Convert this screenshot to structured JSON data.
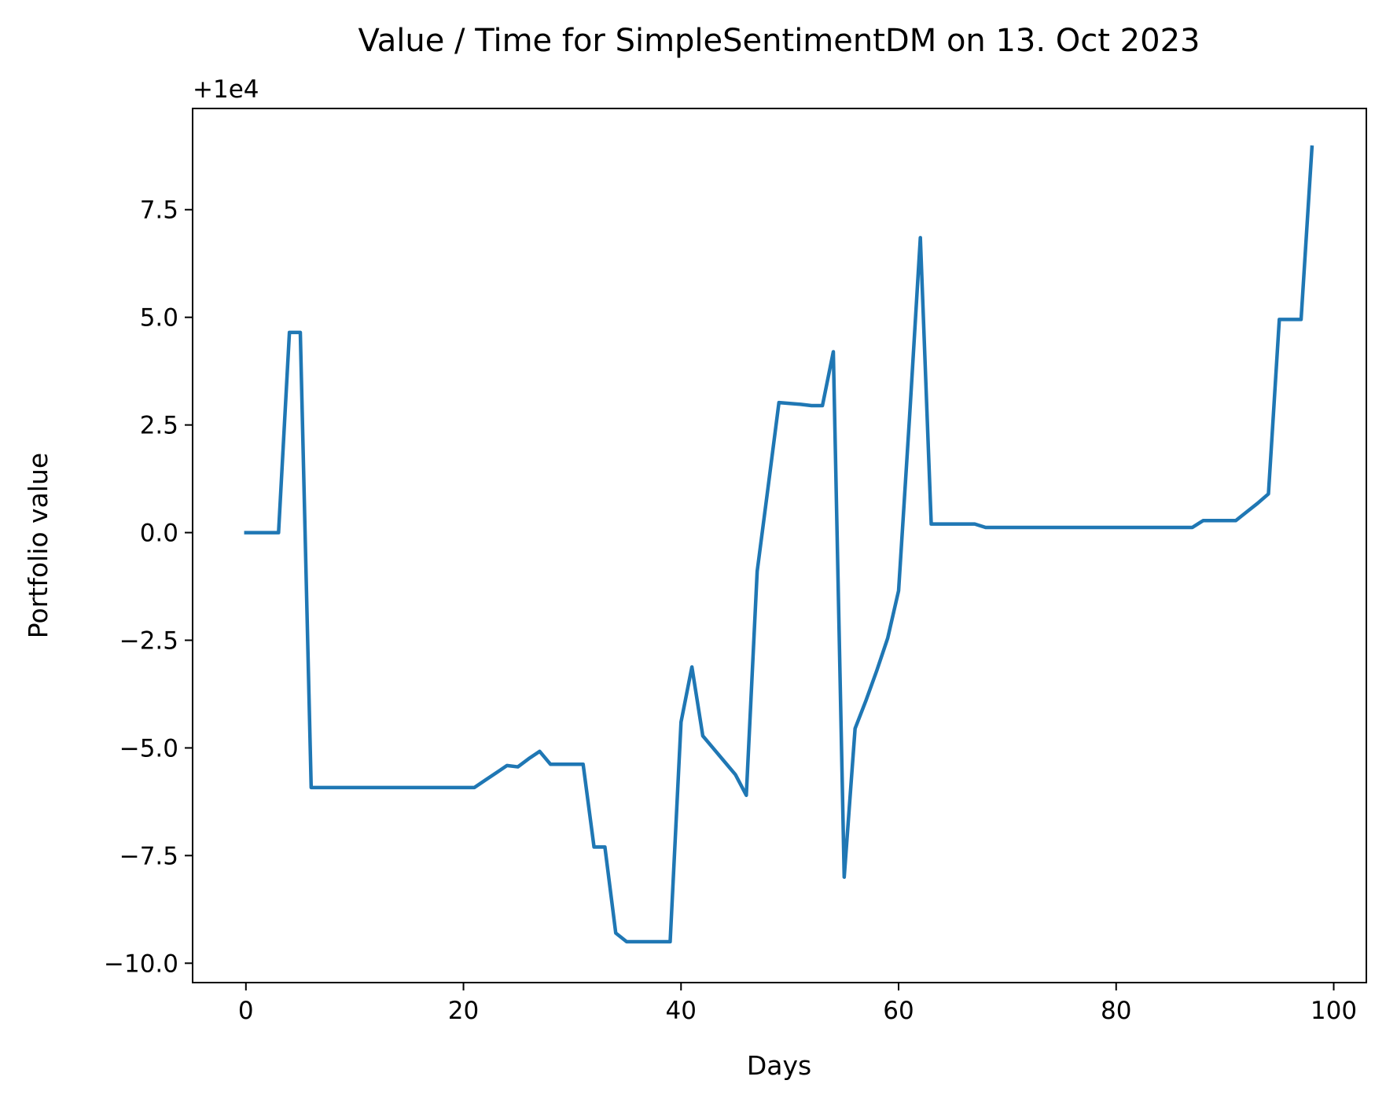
{
  "chart_data": {
    "type": "line",
    "title": "Value / Time for SimpleSentimentDM on 13. Oct 2023",
    "xlabel": "Days",
    "ylabel": "Portfolio value",
    "offset_text": "+1e4",
    "offset": 10000,
    "xlim": [
      -4.9,
      103.0
    ],
    "ylim": [
      -10.45,
      9.85
    ],
    "grid": false,
    "x_ticks": [
      0,
      20,
      40,
      60,
      80,
      100
    ],
    "x_tick_labels": [
      "0",
      "20",
      "40",
      "60",
      "80",
      "100"
    ],
    "y_ticks": [
      -10.0,
      -7.5,
      -5.0,
      -2.5,
      0.0,
      2.5,
      5.0,
      7.5
    ],
    "y_tick_labels": [
      "−10.0",
      "−7.5",
      "−5.0",
      "−2.5",
      "0.0",
      "2.5",
      "5.0",
      "7.5"
    ],
    "series": [
      {
        "color": "#1f77b4",
        "x": [
          0,
          1,
          2,
          3,
          4,
          5,
          6,
          7,
          8,
          9,
          10,
          11,
          12,
          13,
          14,
          15,
          16,
          17,
          18,
          19,
          20,
          21,
          22,
          23,
          24,
          25,
          26,
          27,
          28,
          29,
          30,
          31,
          32,
          33,
          34,
          35,
          36,
          37,
          38,
          39,
          40,
          41,
          42,
          43,
          44,
          45,
          46,
          47,
          48,
          49,
          50,
          51,
          52,
          53,
          54,
          55,
          56,
          57,
          58,
          59,
          60,
          61,
          62,
          63,
          64,
          65,
          66,
          67,
          68,
          69,
          70,
          71,
          72,
          73,
          74,
          75,
          76,
          77,
          78,
          79,
          80,
          81,
          82,
          83,
          84,
          85,
          86,
          87,
          88,
          89,
          90,
          91,
          92,
          93,
          94,
          95,
          96,
          97,
          98
        ],
        "y": [
          10000,
          10000,
          10000,
          10000,
          10004.65,
          10004.65,
          9994.08,
          9994.08,
          9994.08,
          9994.08,
          9994.08,
          9994.08,
          9994.08,
          9994.08,
          9994.08,
          9994.08,
          9994.08,
          9994.08,
          9994.08,
          9994.08,
          9994.08,
          9994.08,
          9994.25,
          9994.42,
          9994.59,
          9994.56,
          9994.75,
          9994.92,
          9994.62,
          9994.62,
          9994.62,
          9994.62,
          9992.7,
          9992.7,
          9990.7,
          9990.5,
          9990.5,
          9990.5,
          9990.5,
          9990.5,
          9995.6,
          9996.88,
          9995.28,
          9994.98,
          9994.68,
          9994.38,
          9993.9,
          9999.1,
          10001.05,
          10003.02,
          10003.0,
          10002.98,
          10002.95,
          10002.95,
          10004.2,
          9992.0,
          9995.45,
          9996.1,
          9996.8,
          9997.55,
          9998.65,
          10002.65,
          10006.85,
          10000.2,
          10000.2,
          10000.2,
          10000.2,
          10000.2,
          10000.12,
          10000.12,
          10000.12,
          10000.12,
          10000.12,
          10000.12,
          10000.12,
          10000.12,
          10000.12,
          10000.12,
          10000.12,
          10000.12,
          10000.12,
          10000.12,
          10000.12,
          10000.12,
          10000.12,
          10000.12,
          10000.12,
          10000.12,
          10000.28,
          10000.28,
          10000.28,
          10000.28,
          10000.48,
          10000.68,
          10000.9,
          10004.95,
          10004.95,
          10004.95,
          10008.95
        ]
      }
    ]
  }
}
